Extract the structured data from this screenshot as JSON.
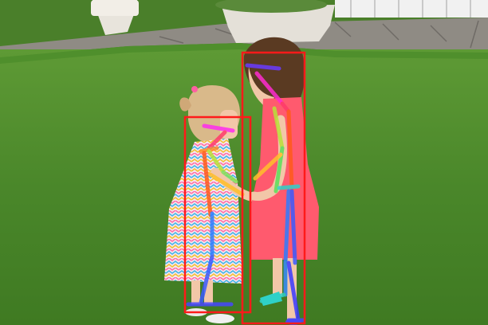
{
  "image": {
    "subject": "two-children-standing-on-grass",
    "overlay": "pose-estimation-skeletons-and-bounding-boxes"
  },
  "colors": {
    "grass": "#4f8f2c",
    "grass_dark": "#3a6e1f",
    "pavement": "#8f8b84",
    "box": "#ff1a1a",
    "dress_pink": "#ff5a6e",
    "dress_pattern_bg": "#f6e6ef",
    "hair_brown": "#5a3a22",
    "hair_blonde": "#d9b98a",
    "skin": "#f2c7a8"
  },
  "detections": [
    {
      "label": "person"
    },
    {
      "label": "person"
    }
  ]
}
